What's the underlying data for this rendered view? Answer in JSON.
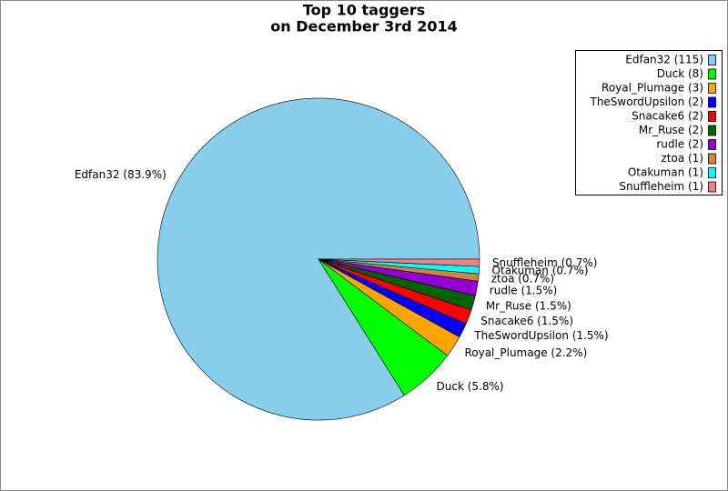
{
  "chart_data": {
    "type": "pie",
    "title": [
      "Top 10 taggers",
      "on December 3rd 2014"
    ],
    "values": [
      115,
      8,
      3,
      2,
      2,
      2,
      2,
      1,
      1,
      1
    ],
    "value_labels": [
      "Edfan32 (83.9%)",
      "Duck (5.8%)",
      "Royal_Plumage (2.2%)",
      "TheSwordUpsilon (1.5%)",
      "Snacake6 (1.5%)",
      "Mr_Ruse (1.5%)",
      "rudle (1.5%)",
      "ztoa (0.7%)",
      "Otakuman (0.7%)",
      "Snuffleheim (0.7%)"
    ],
    "legend_labels": [
      "Edfan32 (115)",
      "Duck (8)",
      "Royal_Plumage (3)",
      "TheSwordUpsilon (2)",
      "Snacake6 (2)",
      "Mr_Ruse (2)",
      "rudle (2)",
      "ztoa (1)",
      "Otakuman (1)",
      "Snuffleheim (1)"
    ],
    "colors": [
      "#87ceeb",
      "#00ff00",
      "#ffa500",
      "#0000ff",
      "#ff0000",
      "#006400",
      "#9400d3",
      "#cd853f",
      "#00ffff",
      "#f08080"
    ],
    "legend": "upper right"
  }
}
